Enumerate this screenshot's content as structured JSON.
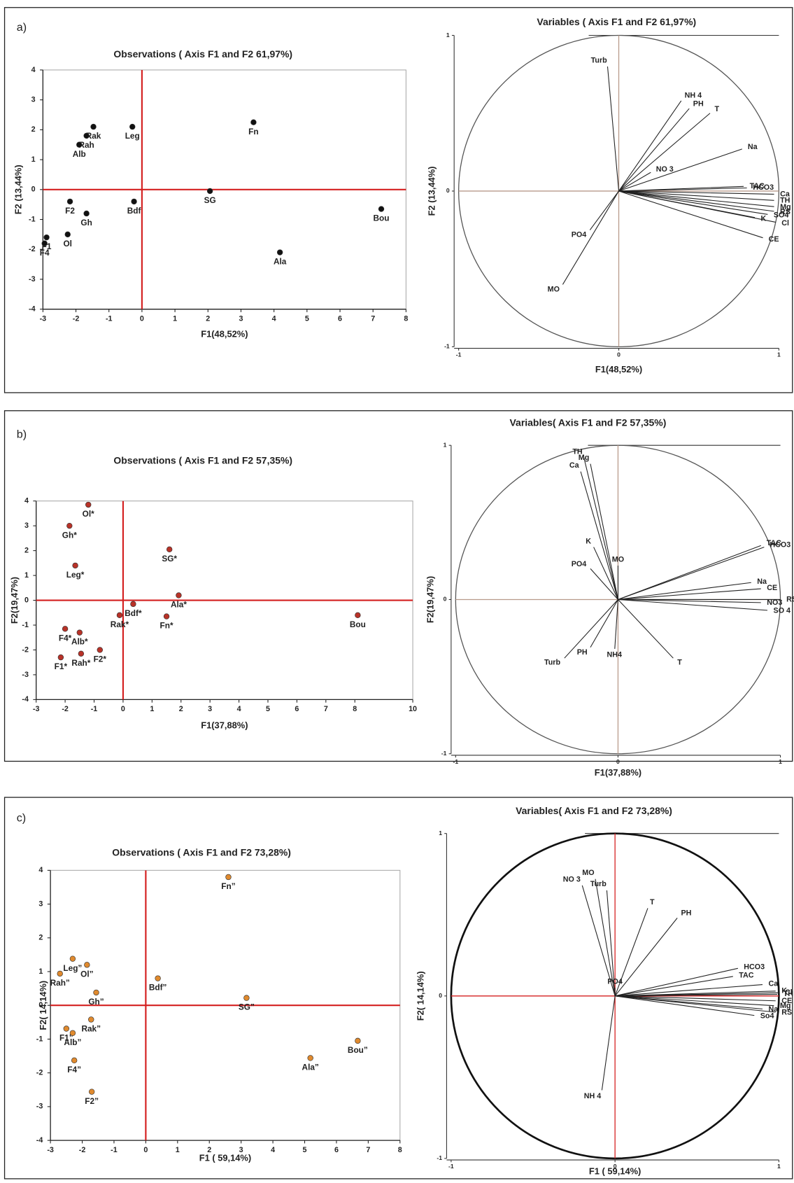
{
  "chart_data": [
    {
      "type": "scatter",
      "panel": "a)",
      "title": "Observations ( Axis F1 and F2 61,97%)",
      "xlabel": "F1(48,52%)",
      "ylabel": "F2 (13,44%)",
      "point_labels": [
        "Rak",
        "Leg",
        "Rah",
        "Alb",
        "Fn",
        "F2",
        "Bdf",
        "SG",
        "Gh",
        "Bou",
        "F1",
        "F4",
        "Ol",
        "Ala"
      ],
      "x": [
        -1.47,
        -0.29,
        -1.68,
        -1.9,
        3.38,
        -2.18,
        -0.24,
        2.06,
        -1.68,
        7.25,
        -2.89,
        -2.95,
        -2.25,
        4.18
      ],
      "y": [
        2.1,
        2.1,
        1.8,
        1.5,
        2.25,
        -0.4,
        -0.4,
        -0.05,
        -0.8,
        -0.65,
        -1.6,
        -1.8,
        -1.5,
        -2.1
      ],
      "xlim": [
        -3,
        8
      ],
      "ylim": [
        -4,
        4
      ],
      "xticks": [
        -3,
        -2,
        -1,
        0,
        1,
        2,
        3,
        4,
        5,
        6,
        7,
        8
      ],
      "yticks": [
        -4,
        -3,
        -2,
        -1,
        0,
        1,
        2,
        3,
        4
      ],
      "color": "#111111"
    },
    {
      "type": "circle",
      "title": "Variables ( Axis F1 and F2 61,97%)",
      "xlabel": "F1(48,52%)",
      "ylabel": "F2 (13,44%)",
      "labels": [
        "Turb",
        "NH 4",
        "PH",
        "T",
        "Na",
        "NO 3",
        "TAC",
        "HCO3",
        "Ca",
        "TH",
        "Mg",
        "RS",
        "SO4",
        "Cl",
        "K",
        "CE",
        "PO4",
        "MO"
      ],
      "x": [
        -0.07,
        0.39,
        0.44,
        0.57,
        0.77,
        0.2,
        0.78,
        0.8,
        0.97,
        0.97,
        0.97,
        0.97,
        0.93,
        0.98,
        0.85,
        0.9,
        -0.18,
        -0.35
      ],
      "y": [
        0.8,
        0.58,
        0.53,
        0.5,
        0.27,
        0.12,
        0.03,
        0.02,
        -0.02,
        -0.06,
        -0.1,
        -0.13,
        -0.15,
        -0.2,
        -0.17,
        -0.3,
        -0.25,
        -0.6
      ],
      "xlim": [
        -1,
        1
      ],
      "ylim": [
        -1,
        1
      ],
      "xticks": [
        -1,
        0,
        1
      ],
      "yticks": [
        -1,
        0,
        1
      ],
      "color": "#222222",
      "circle_color": "#555555"
    },
    {
      "type": "scatter",
      "panel": "b)",
      "title": "Observations ( Axis F1 and F2 57,35%)",
      "xlabel": "F1(37,88%)",
      "ylabel": "F2(19,47%)",
      "point_labels": [
        "Ol*",
        "Gh*",
        "SG*",
        "Leg*",
        "Ala*",
        "Bdf*",
        "Rak*",
        "Fn*",
        "Bou",
        "F4*",
        "Alb*",
        "F1*",
        "Rah*",
        "F2*"
      ],
      "x": [
        -1.2,
        -1.85,
        1.6,
        -1.65,
        1.92,
        0.35,
        -0.12,
        1.5,
        8.1,
        -2.0,
        -1.5,
        -2.15,
        -1.45,
        -0.8
      ],
      "y": [
        3.85,
        3.0,
        2.05,
        1.4,
        0.2,
        -0.15,
        -0.6,
        -0.65,
        -0.6,
        -1.15,
        -1.3,
        -2.3,
        -2.15,
        -2.0
      ],
      "xlim": [
        -3,
        10
      ],
      "ylim": [
        -4,
        4
      ],
      "xticks": [
        -3,
        -2,
        -1,
        0,
        1,
        2,
        3,
        4,
        5,
        6,
        7,
        8,
        10
      ],
      "yticks": [
        -4,
        -3,
        -2,
        -1,
        0,
        1,
        2,
        3,
        4
      ],
      "color": "#b83228"
    },
    {
      "type": "circle",
      "title": "Variables( Axis F1 and F2 57,35%)",
      "xlabel": "F1(37,88%)",
      "ylabel": "F2(19,47%)",
      "labels": [
        "Ca",
        "TH",
        "Mg",
        "K",
        "PO4",
        "MO",
        "TAC",
        "HCO3",
        "Na",
        "CE",
        "RS",
        "NO3",
        "SO 4",
        "Turb",
        "PH",
        "NH4",
        "T"
      ],
      "x": [
        -0.23,
        -0.21,
        -0.17,
        -0.15,
        -0.17,
        0.0,
        0.88,
        0.9,
        0.82,
        0.88,
        1.0,
        0.88,
        0.92,
        -0.33,
        -0.17,
        -0.02,
        0.34
      ],
      "y": [
        0.83,
        0.92,
        0.88,
        0.34,
        0.2,
        0.22,
        0.35,
        0.34,
        0.11,
        0.07,
        0.0,
        -0.02,
        -0.07,
        -0.38,
        -0.31,
        -0.32,
        -0.38
      ],
      "xlim": [
        -1,
        1
      ],
      "ylim": [
        -1,
        1
      ],
      "xticks": [
        -1,
        0,
        1
      ],
      "yticks": [
        -1,
        0,
        1
      ],
      "color": "#222222",
      "circle_color": "#555555"
    },
    {
      "type": "scatter",
      "panel": "c)",
      "title": "Observations ( Axis F1 and F2 73,28%)",
      "xlabel": "F1 ( 59,14%)",
      "ylabel": "F2( 14,14%)",
      "point_labels": [
        "Fn”",
        "Leg”",
        "Ol”",
        "Rah”",
        "Bdf”",
        "Gh”",
        "SG”",
        "F1”",
        "Rak”",
        "Alb”",
        "F4”",
        "F2”",
        "Ala”",
        "Bou”"
      ],
      "x": [
        2.6,
        -2.3,
        -1.85,
        -2.7,
        0.38,
        -1.56,
        3.17,
        -2.5,
        -1.72,
        -2.3,
        -2.25,
        -1.7,
        5.18,
        6.67
      ],
      "y": [
        3.8,
        1.38,
        1.2,
        0.94,
        0.8,
        0.38,
        0.22,
        -0.69,
        -0.42,
        -0.82,
        -1.63,
        -2.56,
        -1.56,
        -1.05
      ],
      "xlim": [
        -3,
        8
      ],
      "ylim": [
        -4,
        4
      ],
      "xticks": [
        -3,
        -2,
        -1,
        0,
        1,
        2,
        3,
        4,
        5,
        6,
        7,
        8
      ],
      "yticks": [
        -4,
        -3,
        -2,
        -1,
        0,
        1,
        2,
        3,
        4
      ],
      "color": "#e08a2e"
    },
    {
      "type": "circle",
      "title": "Variables( Axis F1 and F2 73,28%)",
      "xlabel": "F1 ( 59,14%)",
      "ylabel": "F2( 14,14%)",
      "labels": [
        "MO",
        "NO 3",
        "Turb",
        "T",
        "PH",
        "HCO3",
        "TAC",
        "Ca",
        "K",
        "Cl",
        "TH",
        "CE",
        "Mg",
        "Na",
        "RS",
        "So4",
        "PO4",
        "NH 4"
      ],
      "x": [
        -0.12,
        -0.2,
        -0.05,
        0.2,
        0.38,
        0.75,
        0.72,
        0.9,
        0.98,
        1.0,
        0.99,
        0.98,
        0.97,
        0.9,
        0.98,
        0.85,
        0.0,
        -0.08
      ],
      "y": [
        0.72,
        0.68,
        0.65,
        0.54,
        0.48,
        0.17,
        0.12,
        0.07,
        0.03,
        0.02,
        0.01,
        -0.03,
        -0.06,
        -0.08,
        -0.1,
        -0.12,
        0.05,
        -0.58
      ],
      "xlim": [
        -1,
        1
      ],
      "ylim": [
        -1,
        1
      ],
      "xticks": [
        -1,
        0,
        1
      ],
      "yticks": [
        -1,
        0,
        1
      ],
      "color": "#222222",
      "circle_color": "#111111"
    }
  ]
}
